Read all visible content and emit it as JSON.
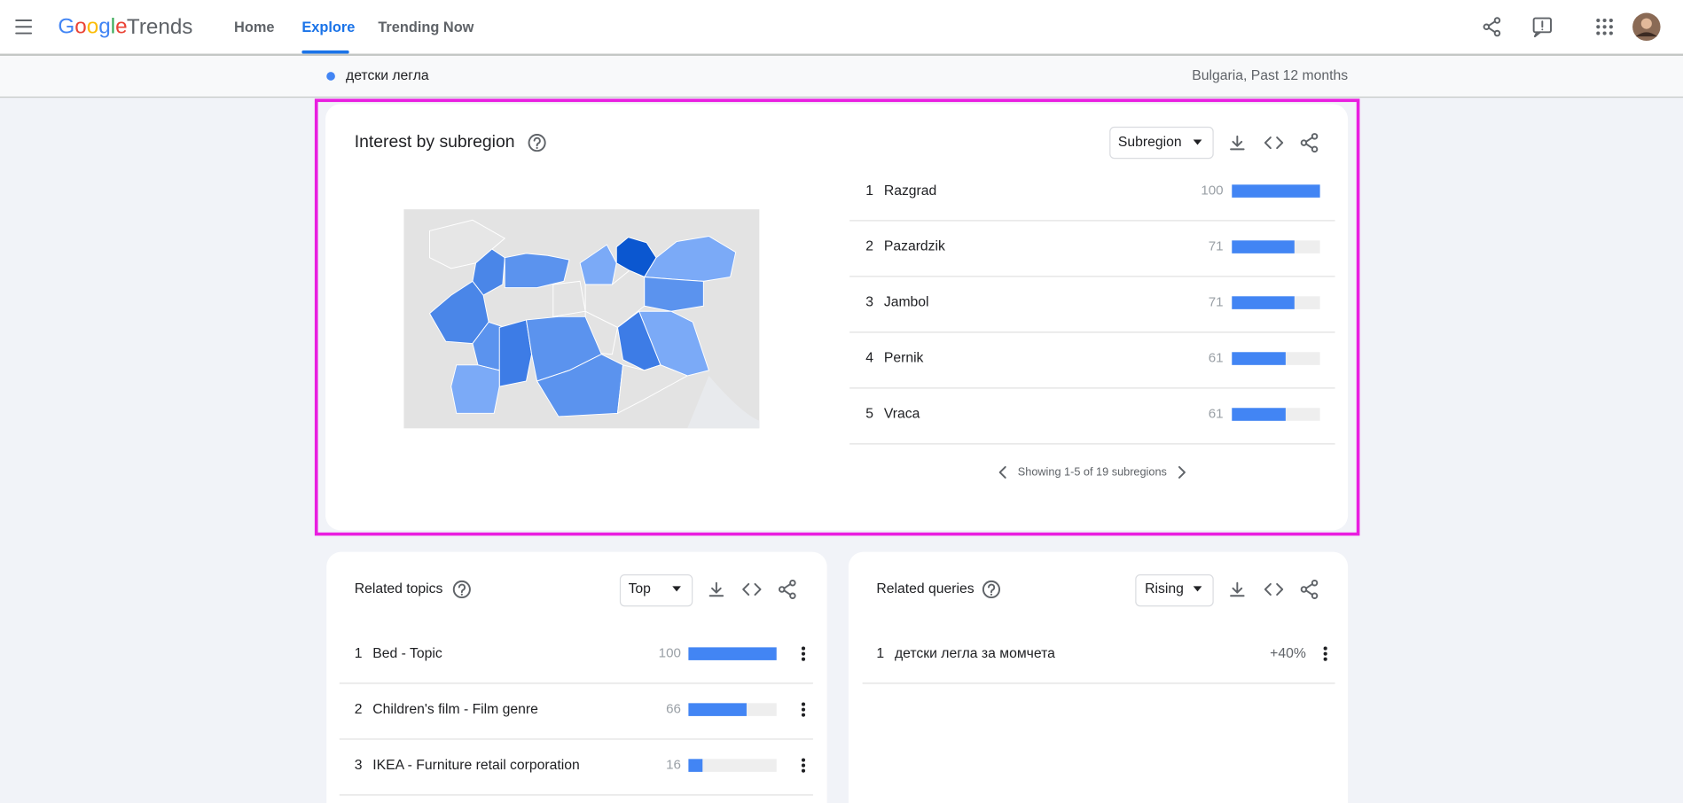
{
  "header": {
    "logo_google": "Google",
    "logo_trends": "Trends",
    "nav": [
      "Home",
      "Explore",
      "Trending Now"
    ]
  },
  "search": {
    "term": "детски легла",
    "context": "Bulgaria, Past 12 months"
  },
  "subregion": {
    "title": "Interest by subregion",
    "dropdown": "Subregion",
    "rows": [
      {
        "rank": 1,
        "name": "Razgrad",
        "value": 100
      },
      {
        "rank": 2,
        "name": "Pazardzik",
        "value": 71
      },
      {
        "rank": 3,
        "name": "Jambol",
        "value": 71
      },
      {
        "rank": 4,
        "name": "Pernik",
        "value": 61
      },
      {
        "rank": 5,
        "name": "Vraca",
        "value": 61
      }
    ],
    "pagination": "Showing 1-5 of 19 subregions"
  },
  "related_topics": {
    "title": "Related topics",
    "dropdown": "Top",
    "rows": [
      {
        "rank": 1,
        "name": "Bed - Topic",
        "value": 100
      },
      {
        "rank": 2,
        "name": "Children's film - Film genre",
        "value": 66
      },
      {
        "rank": 3,
        "name": "IKEA - Furniture retail corporation",
        "value": 16
      }
    ]
  },
  "related_queries": {
    "title": "Related queries",
    "dropdown": "Rising",
    "rows": [
      {
        "rank": 1,
        "name": "детски легла за момчета",
        "value": "+40%"
      }
    ]
  }
}
